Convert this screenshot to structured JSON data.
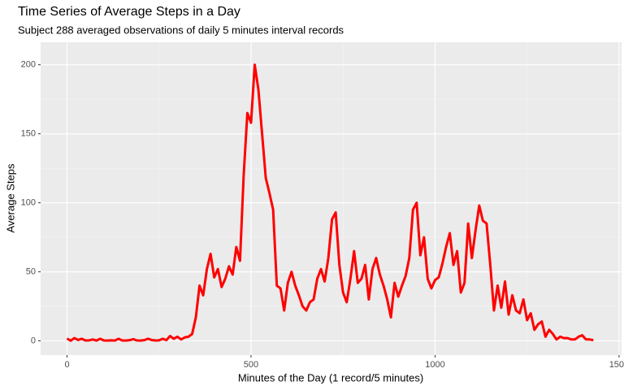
{
  "chart_data": {
    "type": "line",
    "title": "Time Series of Average Steps in a Day",
    "subtitle": "Subject 288 averaged observations of daily 5 minutes interval records",
    "x_label": "Minutes of the Day (1 record/5 minutes)",
    "y_label": "Average Steps",
    "color": "#ff0000",
    "grid": true,
    "xlim": [
      -71.75,
      1506.75
    ],
    "ylim": [
      -10.3,
      216.3
    ],
    "xticks": [
      0,
      500,
      1000,
      1500
    ],
    "yticks": [
      0,
      50,
      100,
      150,
      200
    ],
    "x": [
      0,
      10,
      20,
      30,
      40,
      50,
      60,
      70,
      80,
      90,
      100,
      110,
      120,
      130,
      140,
      150,
      160,
      170,
      180,
      190,
      200,
      210,
      220,
      230,
      240,
      250,
      260,
      270,
      280,
      290,
      300,
      310,
      320,
      330,
      340,
      350,
      360,
      370,
      380,
      390,
      400,
      410,
      420,
      430,
      440,
      450,
      460,
      470,
      480,
      490,
      500,
      510,
      520,
      530,
      540,
      550,
      560,
      570,
      580,
      590,
      600,
      610,
      620,
      630,
      640,
      650,
      660,
      670,
      680,
      690,
      700,
      710,
      720,
      730,
      740,
      750,
      760,
      770,
      780,
      790,
      800,
      810,
      820,
      830,
      840,
      850,
      860,
      870,
      880,
      890,
      900,
      910,
      920,
      930,
      940,
      950,
      960,
      970,
      980,
      990,
      1000,
      1010,
      1020,
      1030,
      1040,
      1050,
      1060,
      1070,
      1080,
      1090,
      1100,
      1110,
      1120,
      1130,
      1140,
      1150,
      1160,
      1170,
      1180,
      1190,
      1200,
      1210,
      1220,
      1230,
      1240,
      1250,
      1260,
      1270,
      1280,
      1290,
      1300,
      1310,
      1320,
      1330,
      1340,
      1350,
      1360,
      1370,
      1380,
      1390,
      1400,
      1410,
      1420,
      1430
    ],
    "values": [
      1.7,
      0.1,
      2,
      0.6,
      1.5,
      0.3,
      0.4,
      1,
      0.2,
      1.5,
      0.3,
      0.2,
      0.4,
      0.2,
      1.5,
      0.3,
      0.2,
      0.5,
      1.2,
      0.3,
      0.2,
      0.5,
      1.5,
      0.6,
      0.3,
      0.4,
      1.5,
      0.5,
      3.5,
      1.5,
      3,
      1,
      2.5,
      3,
      5,
      17,
      40,
      33,
      52,
      63,
      46,
      52,
      39,
      45,
      54,
      48,
      68,
      58,
      120,
      165,
      158,
      200,
      182,
      150,
      118,
      107,
      95,
      40,
      38,
      22,
      42,
      50,
      40,
      33,
      25,
      22,
      28,
      30,
      45,
      52,
      43,
      60,
      88,
      93,
      55,
      35,
      28,
      45,
      65,
      42,
      45,
      55,
      30,
      52,
      60,
      48,
      40,
      30,
      17,
      42,
      32,
      40,
      47,
      60,
      95,
      100,
      62,
      75,
      45,
      38,
      44,
      46,
      56,
      68,
      78,
      55,
      65,
      35,
      42,
      85,
      60,
      80,
      98,
      87,
      85,
      55,
      22,
      40,
      24,
      43,
      19,
      33,
      22,
      20,
      30,
      15,
      20,
      8,
      12,
      14,
      3,
      8,
      5,
      1,
      3,
      2,
      2,
      1,
      1,
      3,
      4,
      1,
      1,
      0.5
    ]
  }
}
